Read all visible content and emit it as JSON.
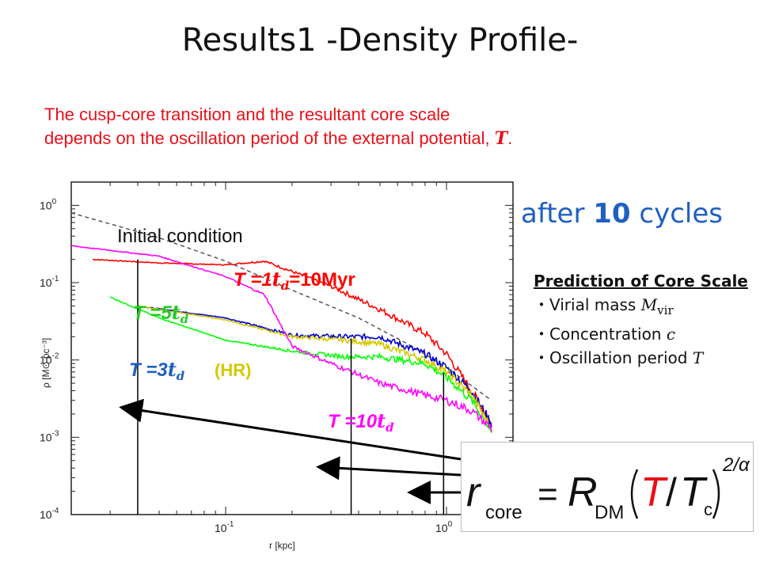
{
  "slide": {
    "title": "Results1 -Density Profile-",
    "intro_line1": "The cusp-core transition and the resultant core scale",
    "intro_line2": "depends on the oscillation period of the external potential, ",
    "intro_symbol": "T",
    "intro_period": ".",
    "after_prefix": "after ",
    "after_number": "10",
    "after_suffix": " cycles",
    "prediction": {
      "heading": "Prediction of Core Scale",
      "items": [
        {
          "bullet": "・",
          "label": "Virial mass ",
          "symbol": "M",
          "sub": "vir"
        },
        {
          "bullet": "・",
          "label": "Concentration ",
          "symbol": "c",
          "sub": ""
        },
        {
          "bullet": "・",
          "label": "Oscillation period ",
          "symbol": "T",
          "sub": ""
        }
      ]
    },
    "formula": {
      "lhs": "r",
      "lhs_sub": "core",
      "equals": "=",
      "coeff": "R",
      "coeff_sub": "DM",
      "numerator": "T",
      "slash": "/",
      "denominator": "T",
      "denominator_sub": "c",
      "exponent": "2/α",
      "highlight_color": "#e8101a"
    },
    "accent_colors": {
      "red_text": "#e8101a",
      "blue_text": "#1f5fc2",
      "magenta_text": "#ff00ff",
      "green_text": "#22cc22"
    }
  },
  "chart_data": {
    "type": "line",
    "xlabel": "r [kpc]",
    "ylabel": "ρ [M⊙ pc⁻³]",
    "xscale": "log",
    "yscale": "log",
    "xlim": [
      0.02,
      2.0
    ],
    "ylim": [
      0.0001,
      2.0
    ],
    "x_ticks": [
      {
        "value": 0.1,
        "base": "10",
        "exp": "-1"
      },
      {
        "value": 1.0,
        "base": "10",
        "exp": "0"
      }
    ],
    "y_ticks": [
      {
        "value": 0.0001,
        "base": "10",
        "exp": "-4"
      },
      {
        "value": 0.001,
        "base": "10",
        "exp": "-3"
      },
      {
        "value": 0.01,
        "base": "10",
        "exp": "-2"
      },
      {
        "value": 0.1,
        "base": "10",
        "exp": "-1"
      },
      {
        "value": 1.0,
        "base": "10",
        "exp": "0"
      }
    ],
    "series": [
      {
        "color": "#555555",
        "style": "dashed",
        "x": [
          0.02,
          0.05,
          0.1,
          0.2,
          0.4,
          0.7,
          1.0,
          1.6
        ],
        "y": [
          0.8,
          0.38,
          0.19,
          0.08,
          0.035,
          0.015,
          0.008,
          0.003
        ]
      },
      {
        "color": "#ff0000",
        "style": "noisy",
        "x": [
          0.025,
          0.05,
          0.1,
          0.15,
          0.3,
          0.5,
          0.8,
          1.0,
          1.3,
          1.6
        ],
        "y": [
          0.2,
          0.18,
          0.17,
          0.19,
          0.09,
          0.045,
          0.022,
          0.012,
          0.004,
          0.0015
        ]
      },
      {
        "color": "#0000cc",
        "style": "noisy",
        "x": [
          0.04,
          0.1,
          0.2,
          0.35,
          0.5,
          0.8,
          1.0,
          1.3,
          1.6
        ],
        "y": [
          0.05,
          0.035,
          0.021,
          0.02,
          0.02,
          0.012,
          0.008,
          0.004,
          0.0015
        ]
      },
      {
        "color": "#d4c800",
        "style": "noisy",
        "x": [
          0.04,
          0.1,
          0.2,
          0.35,
          0.5,
          0.8,
          1.0,
          1.3,
          1.6
        ],
        "y": [
          0.05,
          0.033,
          0.02,
          0.018,
          0.016,
          0.01,
          0.007,
          0.0035,
          0.0013
        ]
      },
      {
        "color": "#00ff00",
        "style": "noisy",
        "x": [
          0.03,
          0.05,
          0.1,
          0.2,
          0.35,
          0.5,
          0.8,
          1.0,
          1.3,
          1.6
        ],
        "y": [
          0.065,
          0.035,
          0.018,
          0.013,
          0.011,
          0.011,
          0.009,
          0.006,
          0.003,
          0.0012
        ]
      },
      {
        "color": "#ff00ff",
        "style": "noisy",
        "x": [
          0.02,
          0.05,
          0.1,
          0.15,
          0.2,
          0.3,
          0.5,
          0.8,
          1.0,
          1.3,
          1.6
        ],
        "y": [
          0.3,
          0.22,
          0.12,
          0.07,
          0.015,
          0.009,
          0.005,
          0.0035,
          0.003,
          0.0022,
          0.0013
        ]
      }
    ],
    "core_markers": [
      {
        "x": 0.04,
        "y": 0.2
      },
      {
        "x": 0.37,
        "y": 0.019
      },
      {
        "x": 0.97,
        "y": 0.0068
      }
    ],
    "annotations": [
      {
        "text": "Initial condition",
        "color": "#111111"
      },
      {
        "text": "T =1",
        "sub": "t",
        "subsub": "d",
        "tail": "=10Myr",
        "color": "#ff0000"
      },
      {
        "text": "T =5",
        "sub": "t",
        "subsub": "d",
        "tail": "",
        "color": "#22cc22"
      },
      {
        "text": "T =3",
        "sub": "t",
        "subsub": "d",
        "tail": "",
        "color": "#1f5fc2"
      },
      {
        "text": "(HR)",
        "color": "#d4c800"
      },
      {
        "text": "T =10",
        "sub": "t",
        "subsub": "d",
        "tail": "",
        "color": "#ff00ff"
      }
    ]
  }
}
